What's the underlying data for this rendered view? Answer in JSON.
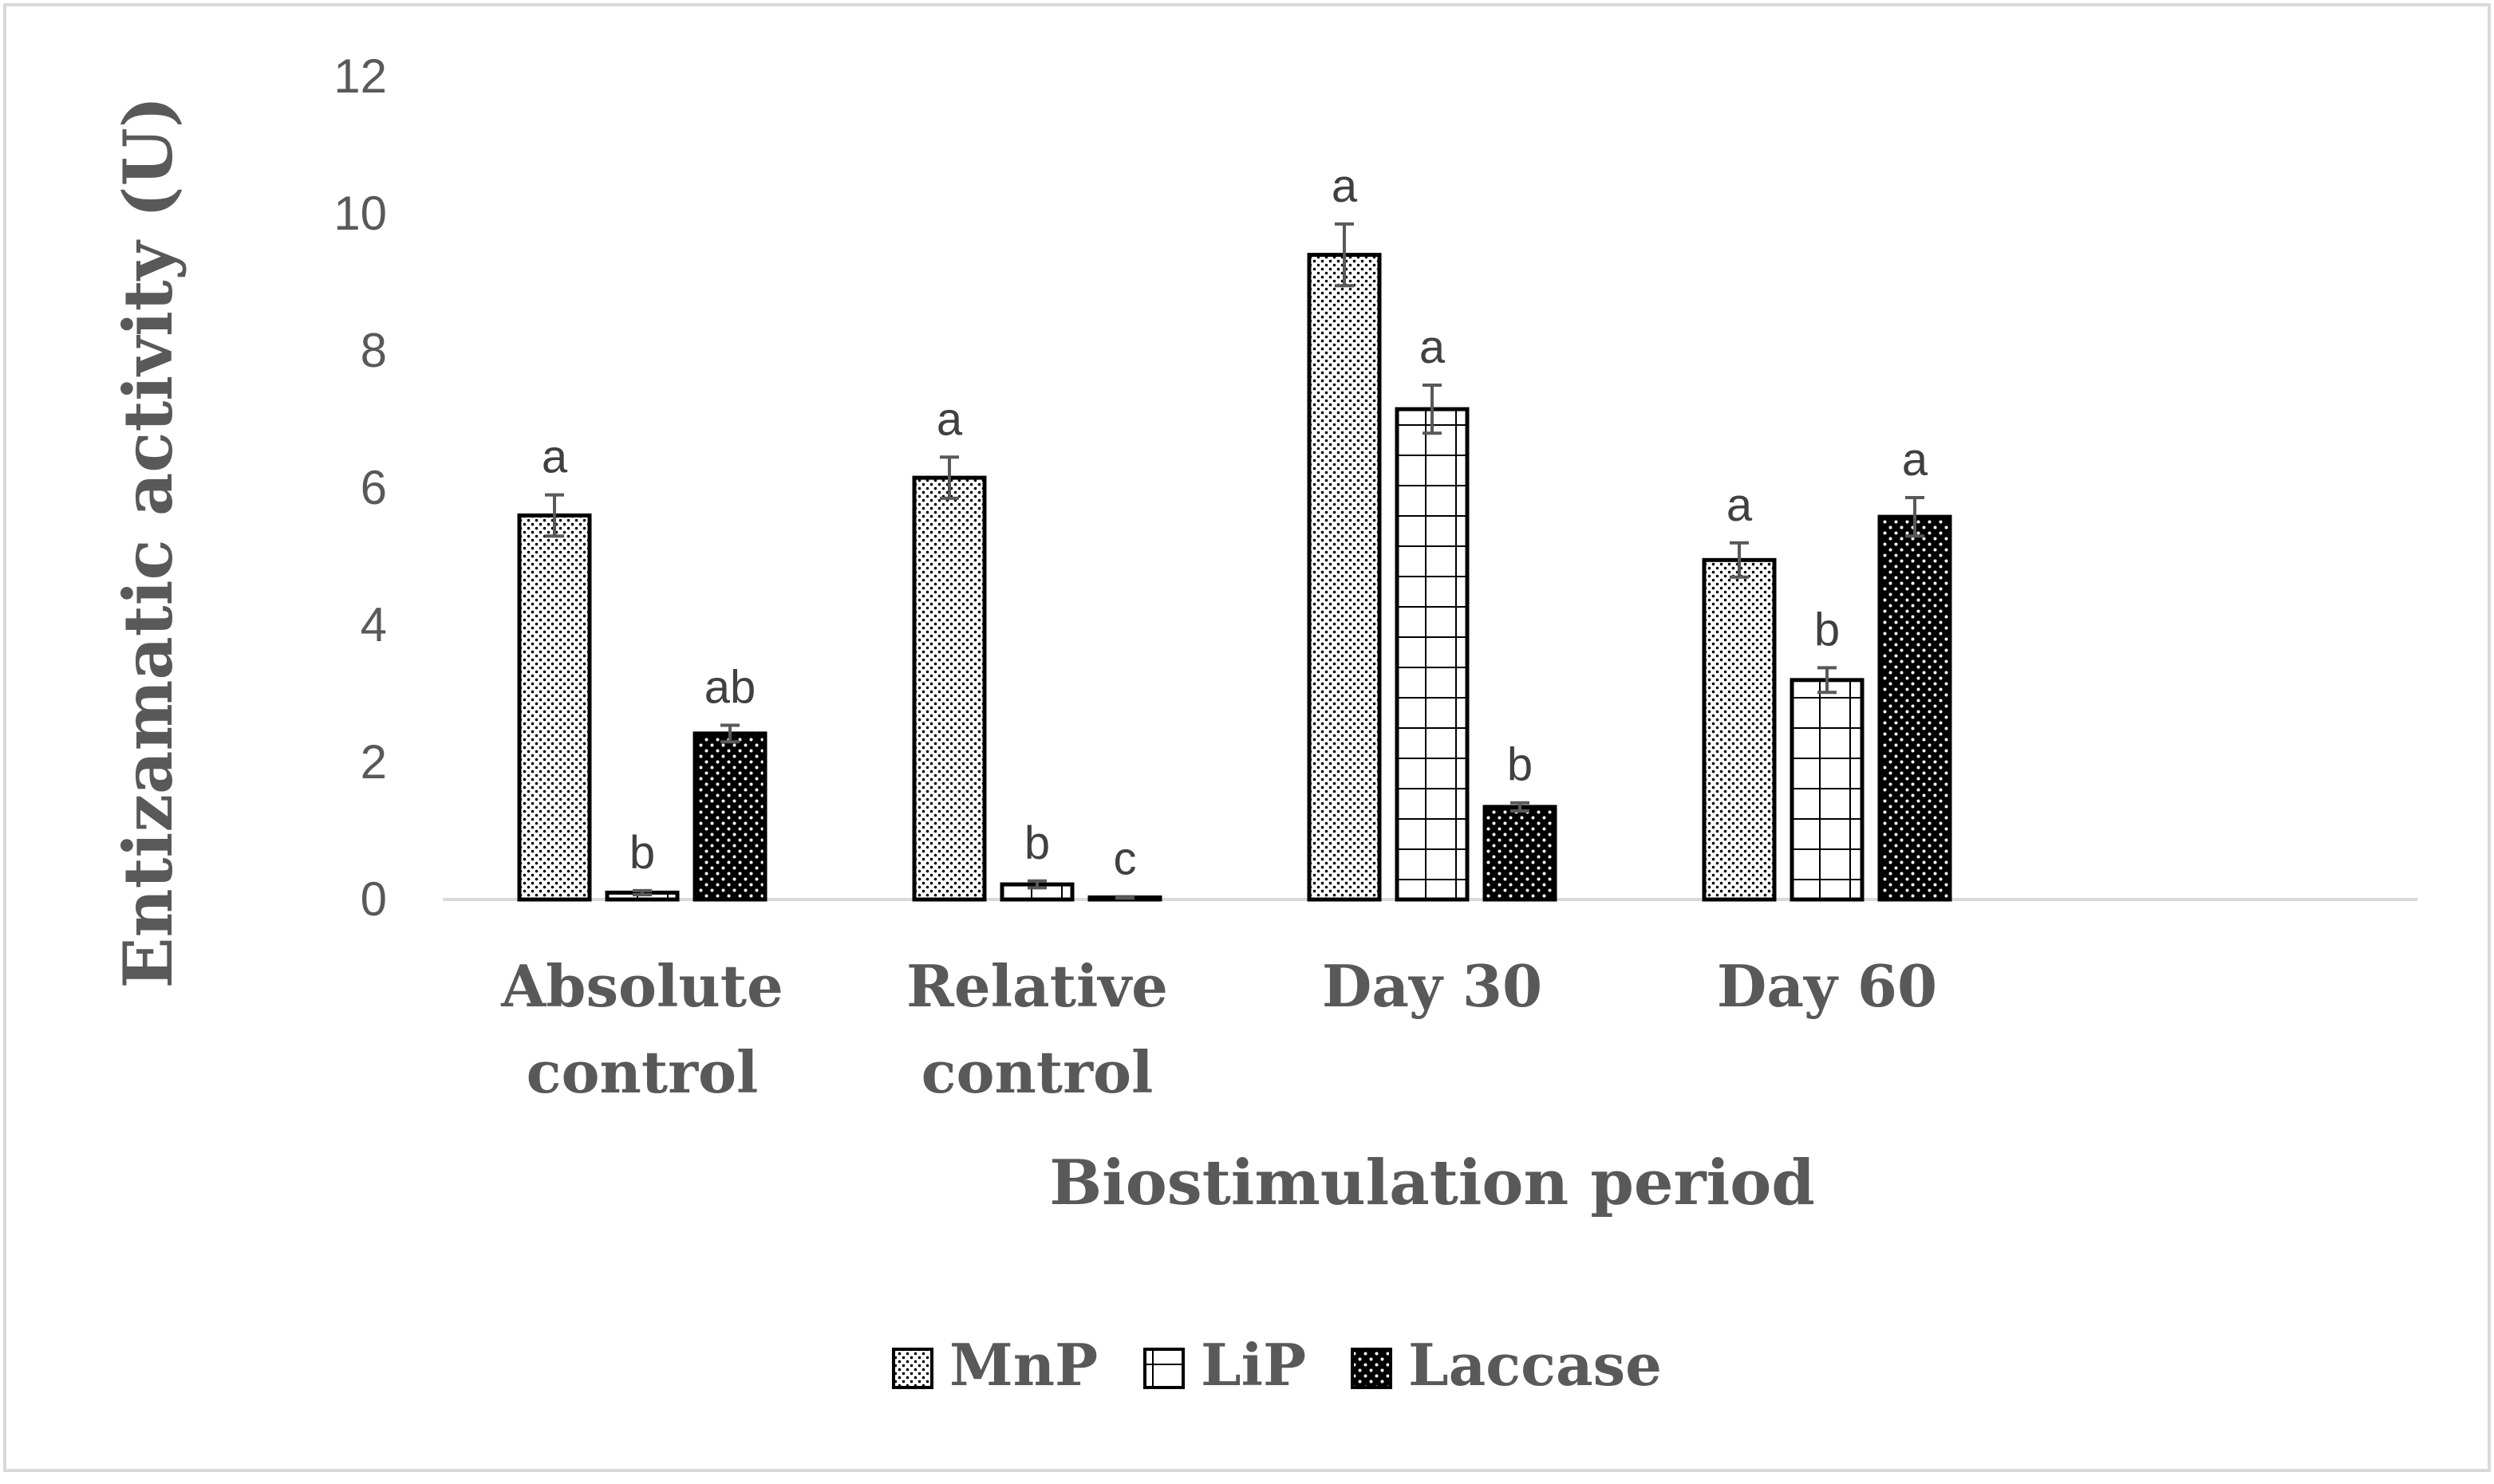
{
  "chart_data": {
    "type": "bar",
    "title": "",
    "xlabel": "Biostimulation period",
    "ylabel": "Entizamatic activity  (U)",
    "ylim": [
      0,
      12
    ],
    "yticks": [
      "0",
      "2",
      "4",
      "6",
      "8",
      "10",
      "12"
    ],
    "grid": false,
    "legend_position": "bottom",
    "categories": [
      {
        "line1": "Absolute",
        "line2": "control"
      },
      {
        "line1": "Relative",
        "line2": "control"
      },
      {
        "line1": "Day 30",
        "line2": ""
      },
      {
        "line1": "Day 60",
        "line2": ""
      }
    ],
    "series": [
      {
        "name": "MnP",
        "pattern": "fine-dots",
        "values": [
          5.6,
          6.15,
          9.4,
          4.95
        ],
        "errors": [
          0.3,
          0.3,
          0.45,
          0.25
        ],
        "letters": [
          "a",
          "a",
          "a",
          "a"
        ]
      },
      {
        "name": "LiP",
        "pattern": "grid",
        "values": [
          0.1,
          0.22,
          7.15,
          3.2
        ],
        "errors": [
          0.03,
          0.05,
          0.35,
          0.18
        ],
        "letters": [
          "b",
          "b",
          "a",
          "b"
        ]
      },
      {
        "name": "Laccase",
        "pattern": "black-dots",
        "values": [
          2.42,
          0.03,
          1.35,
          5.58
        ],
        "errors": [
          0.12,
          0.01,
          0.06,
          0.28
        ],
        "letters": [
          "ab",
          "c",
          "b",
          "a"
        ]
      }
    ],
    "colors": {
      "axis_text": "#595959",
      "axis_line": "#d9d9d9",
      "bar_stroke": "#000000",
      "error_bar": "#595959",
      "frame": "#d9d9d9"
    }
  }
}
